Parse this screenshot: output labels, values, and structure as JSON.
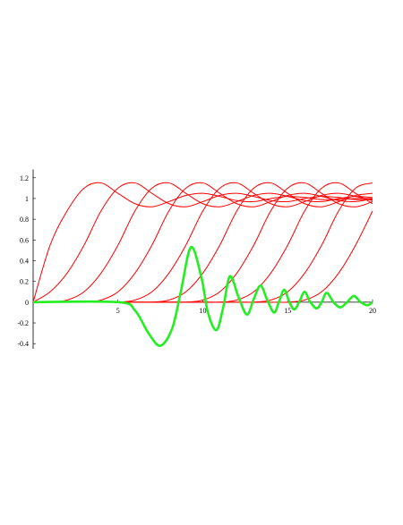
{
  "chart_data": {
    "type": "line",
    "x": [
      0,
      1,
      2,
      3,
      4,
      5,
      6,
      7,
      8,
      9,
      10,
      11,
      12,
      13,
      14,
      15,
      16,
      17,
      18,
      19,
      20
    ],
    "xlim": [
      0,
      20
    ],
    "xticks": [
      5,
      10,
      15,
      20
    ],
    "ylim": [
      -0.45,
      1.28
    ],
    "yticks": [
      -0.4,
      -0.2,
      0,
      0.2,
      0.4,
      0.6,
      0.8,
      1,
      1.2
    ],
    "series": [
      {
        "color": "#ff0000",
        "values": [
          0,
          0.55,
          0.88,
          1.1,
          1.15,
          1.05,
          0.95,
          0.92,
          0.97,
          1.03,
          1.05,
          1.02,
          0.98,
          0.97,
          1.0,
          1.02,
          1.01,
          0.99,
          0.99,
          1.0,
          1.0
        ]
      },
      {
        "color": "#ff0000",
        "values": [
          0,
          0.1,
          0.28,
          0.55,
          0.88,
          1.1,
          1.15,
          1.05,
          0.95,
          0.92,
          0.97,
          1.03,
          1.05,
          1.02,
          0.98,
          0.97,
          1.0,
          1.02,
          1.01,
          0.99,
          0.99
        ]
      },
      {
        "color": "#ff0000",
        "values": [
          0,
          0,
          0.02,
          0.1,
          0.28,
          0.55,
          0.88,
          1.1,
          1.15,
          1.05,
          0.95,
          0.92,
          0.97,
          1.03,
          1.05,
          1.02,
          0.98,
          0.97,
          1.0,
          1.02,
          1.01
        ]
      },
      {
        "color": "#ff0000",
        "values": [
          0,
          0,
          0,
          0,
          0.02,
          0.1,
          0.28,
          0.55,
          0.88,
          1.1,
          1.15,
          1.05,
          0.95,
          0.92,
          0.97,
          1.03,
          1.05,
          1.02,
          0.98,
          0.97,
          1.0
        ]
      },
      {
        "color": "#ff0000",
        "values": [
          0,
          0,
          0,
          0,
          0,
          0,
          0.02,
          0.1,
          0.28,
          0.55,
          0.88,
          1.1,
          1.15,
          1.05,
          0.95,
          0.92,
          0.97,
          1.03,
          1.05,
          1.02,
          0.98
        ]
      },
      {
        "color": "#ff0000",
        "values": [
          0,
          0,
          0,
          0,
          0,
          0,
          0,
          0,
          0.02,
          0.1,
          0.28,
          0.55,
          0.88,
          1.1,
          1.15,
          1.05,
          0.95,
          0.92,
          0.97,
          1.03,
          1.05
        ]
      },
      {
        "color": "#ff0000",
        "values": [
          0,
          0,
          0,
          0,
          0,
          0,
          0,
          0,
          0,
          0,
          0.02,
          0.1,
          0.28,
          0.55,
          0.88,
          1.1,
          1.15,
          1.05,
          0.95,
          0.92,
          0.97
        ]
      },
      {
        "color": "#ff0000",
        "values": [
          0,
          0,
          0,
          0,
          0,
          0,
          0,
          0,
          0,
          0,
          0,
          0,
          0.02,
          0.1,
          0.28,
          0.55,
          0.88,
          1.1,
          1.15,
          1.05,
          0.95
        ]
      },
      {
        "color": "#ff0000",
        "values": [
          0,
          0,
          0,
          0,
          0,
          0,
          0,
          0,
          0,
          0,
          0,
          0,
          0,
          0,
          0.02,
          0.1,
          0.28,
          0.55,
          0.88,
          1.1,
          1.15
        ]
      },
      {
        "color": "#ff0000",
        "values": [
          0,
          0,
          0,
          0,
          0,
          0,
          0,
          0,
          0,
          0,
          0,
          0,
          0,
          0,
          0,
          0,
          0.02,
          0.1,
          0.28,
          0.55,
          0.88
        ]
      },
      {
        "color": "#22ee22",
        "x": [
          0,
          5,
          6,
          6.8,
          7.5,
          8.2,
          8.7,
          9.3,
          9.9,
          10.3,
          10.8,
          11.2,
          11.6,
          12.1,
          12.6,
          13.0,
          13.4,
          13.8,
          14.2,
          14.5,
          14.8,
          15.1,
          15.4,
          15.7,
          16.0,
          16.3,
          16.7,
          17.0,
          17.3,
          17.7,
          18.1,
          18.5,
          18.9,
          19.3,
          19.7,
          20
        ],
        "values": [
          0,
          0,
          -0.08,
          -0.3,
          -0.42,
          -0.25,
          0.1,
          0.53,
          0.25,
          -0.1,
          -0.27,
          -0.05,
          0.25,
          0.05,
          -0.12,
          0.03,
          0.16,
          0.02,
          -0.1,
          0.01,
          0.12,
          0,
          -0.07,
          0.01,
          0.1,
          0.01,
          -0.06,
          0,
          0.09,
          0,
          -0.05,
          0,
          0.06,
          0,
          -0.03,
          0
        ]
      }
    ]
  }
}
